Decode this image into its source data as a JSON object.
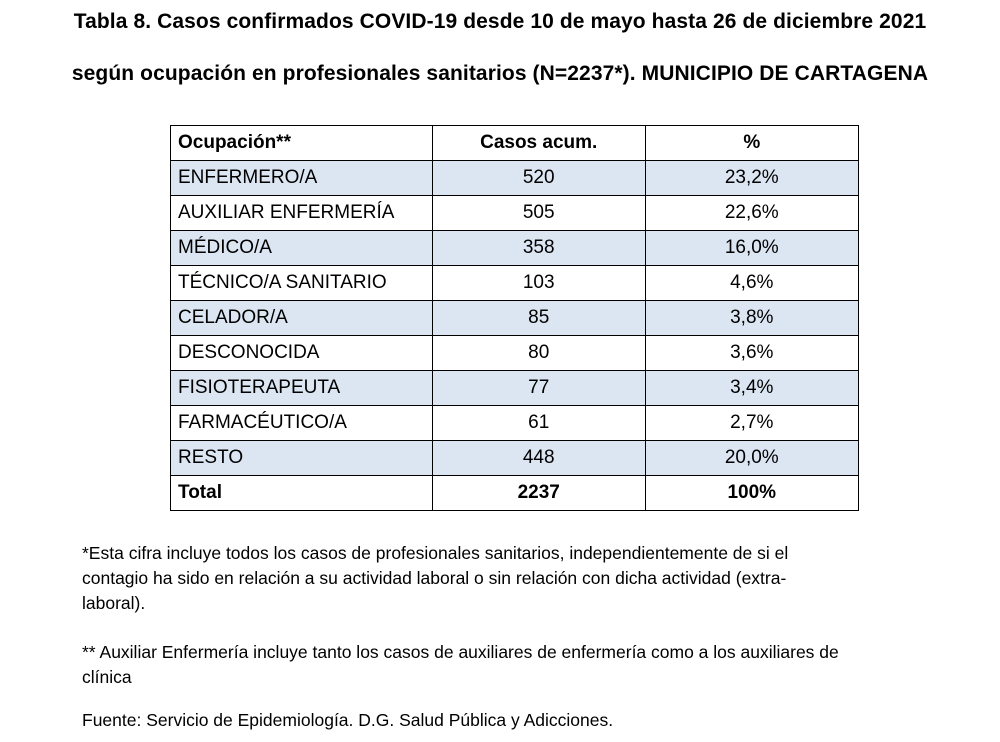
{
  "title": {
    "line1": "Tabla 8. Casos confirmados COVID-19 desde 10 de mayo hasta 26 de diciembre 2021",
    "line2": "según ocupación en profesionales sanitarios (N=2237*). MUNICIPIO DE CARTAGENA"
  },
  "table": {
    "headers": [
      "Ocupación**",
      "Casos acum.",
      "%"
    ],
    "rows": [
      {
        "occupation": "ENFERMERO/A",
        "cases": "520",
        "percent": "23,2%"
      },
      {
        "occupation": "AUXILIAR ENFERMERÍA",
        "cases": "505",
        "percent": "22,6%"
      },
      {
        "occupation": "MÉDICO/A",
        "cases": "358",
        "percent": "16,0%"
      },
      {
        "occupation": "TÉCNICO/A SANITARIO",
        "cases": "103",
        "percent": "4,6%"
      },
      {
        "occupation": "CELADOR/A",
        "cases": "85",
        "percent": "3,8%"
      },
      {
        "occupation": "DESCONOCIDA",
        "cases": "80",
        "percent": "3,6%"
      },
      {
        "occupation": "FISIOTERAPEUTA",
        "cases": "77",
        "percent": "3,4%"
      },
      {
        "occupation": "FARMACÉUTICO/A",
        "cases": "61",
        "percent": "2,7%"
      },
      {
        "occupation": "RESTO",
        "cases": "448",
        "percent": "20,0%"
      }
    ],
    "total": {
      "label": "Total",
      "cases": "2237",
      "percent": "100%"
    }
  },
  "notes": {
    "note1_line1": "*Esta cifra incluye todos los casos de profesionales sanitarios, independientemente de si el",
    "note1_line2": "contagio ha sido en relación a  su actividad laboral o sin relación con dicha actividad (extra-",
    "note1_line3": "laboral).",
    "note2_line1": "** Auxiliar Enfermería incluye tanto los casos de auxiliares de enfermería como a los auxiliares de",
    "note2_line2": "clínica",
    "source": "Fuente: Servicio de Epidemiología. D.G. Salud Pública y Adicciones."
  },
  "colors": {
    "row_shade": "#dce6f2",
    "border": "#000000"
  }
}
